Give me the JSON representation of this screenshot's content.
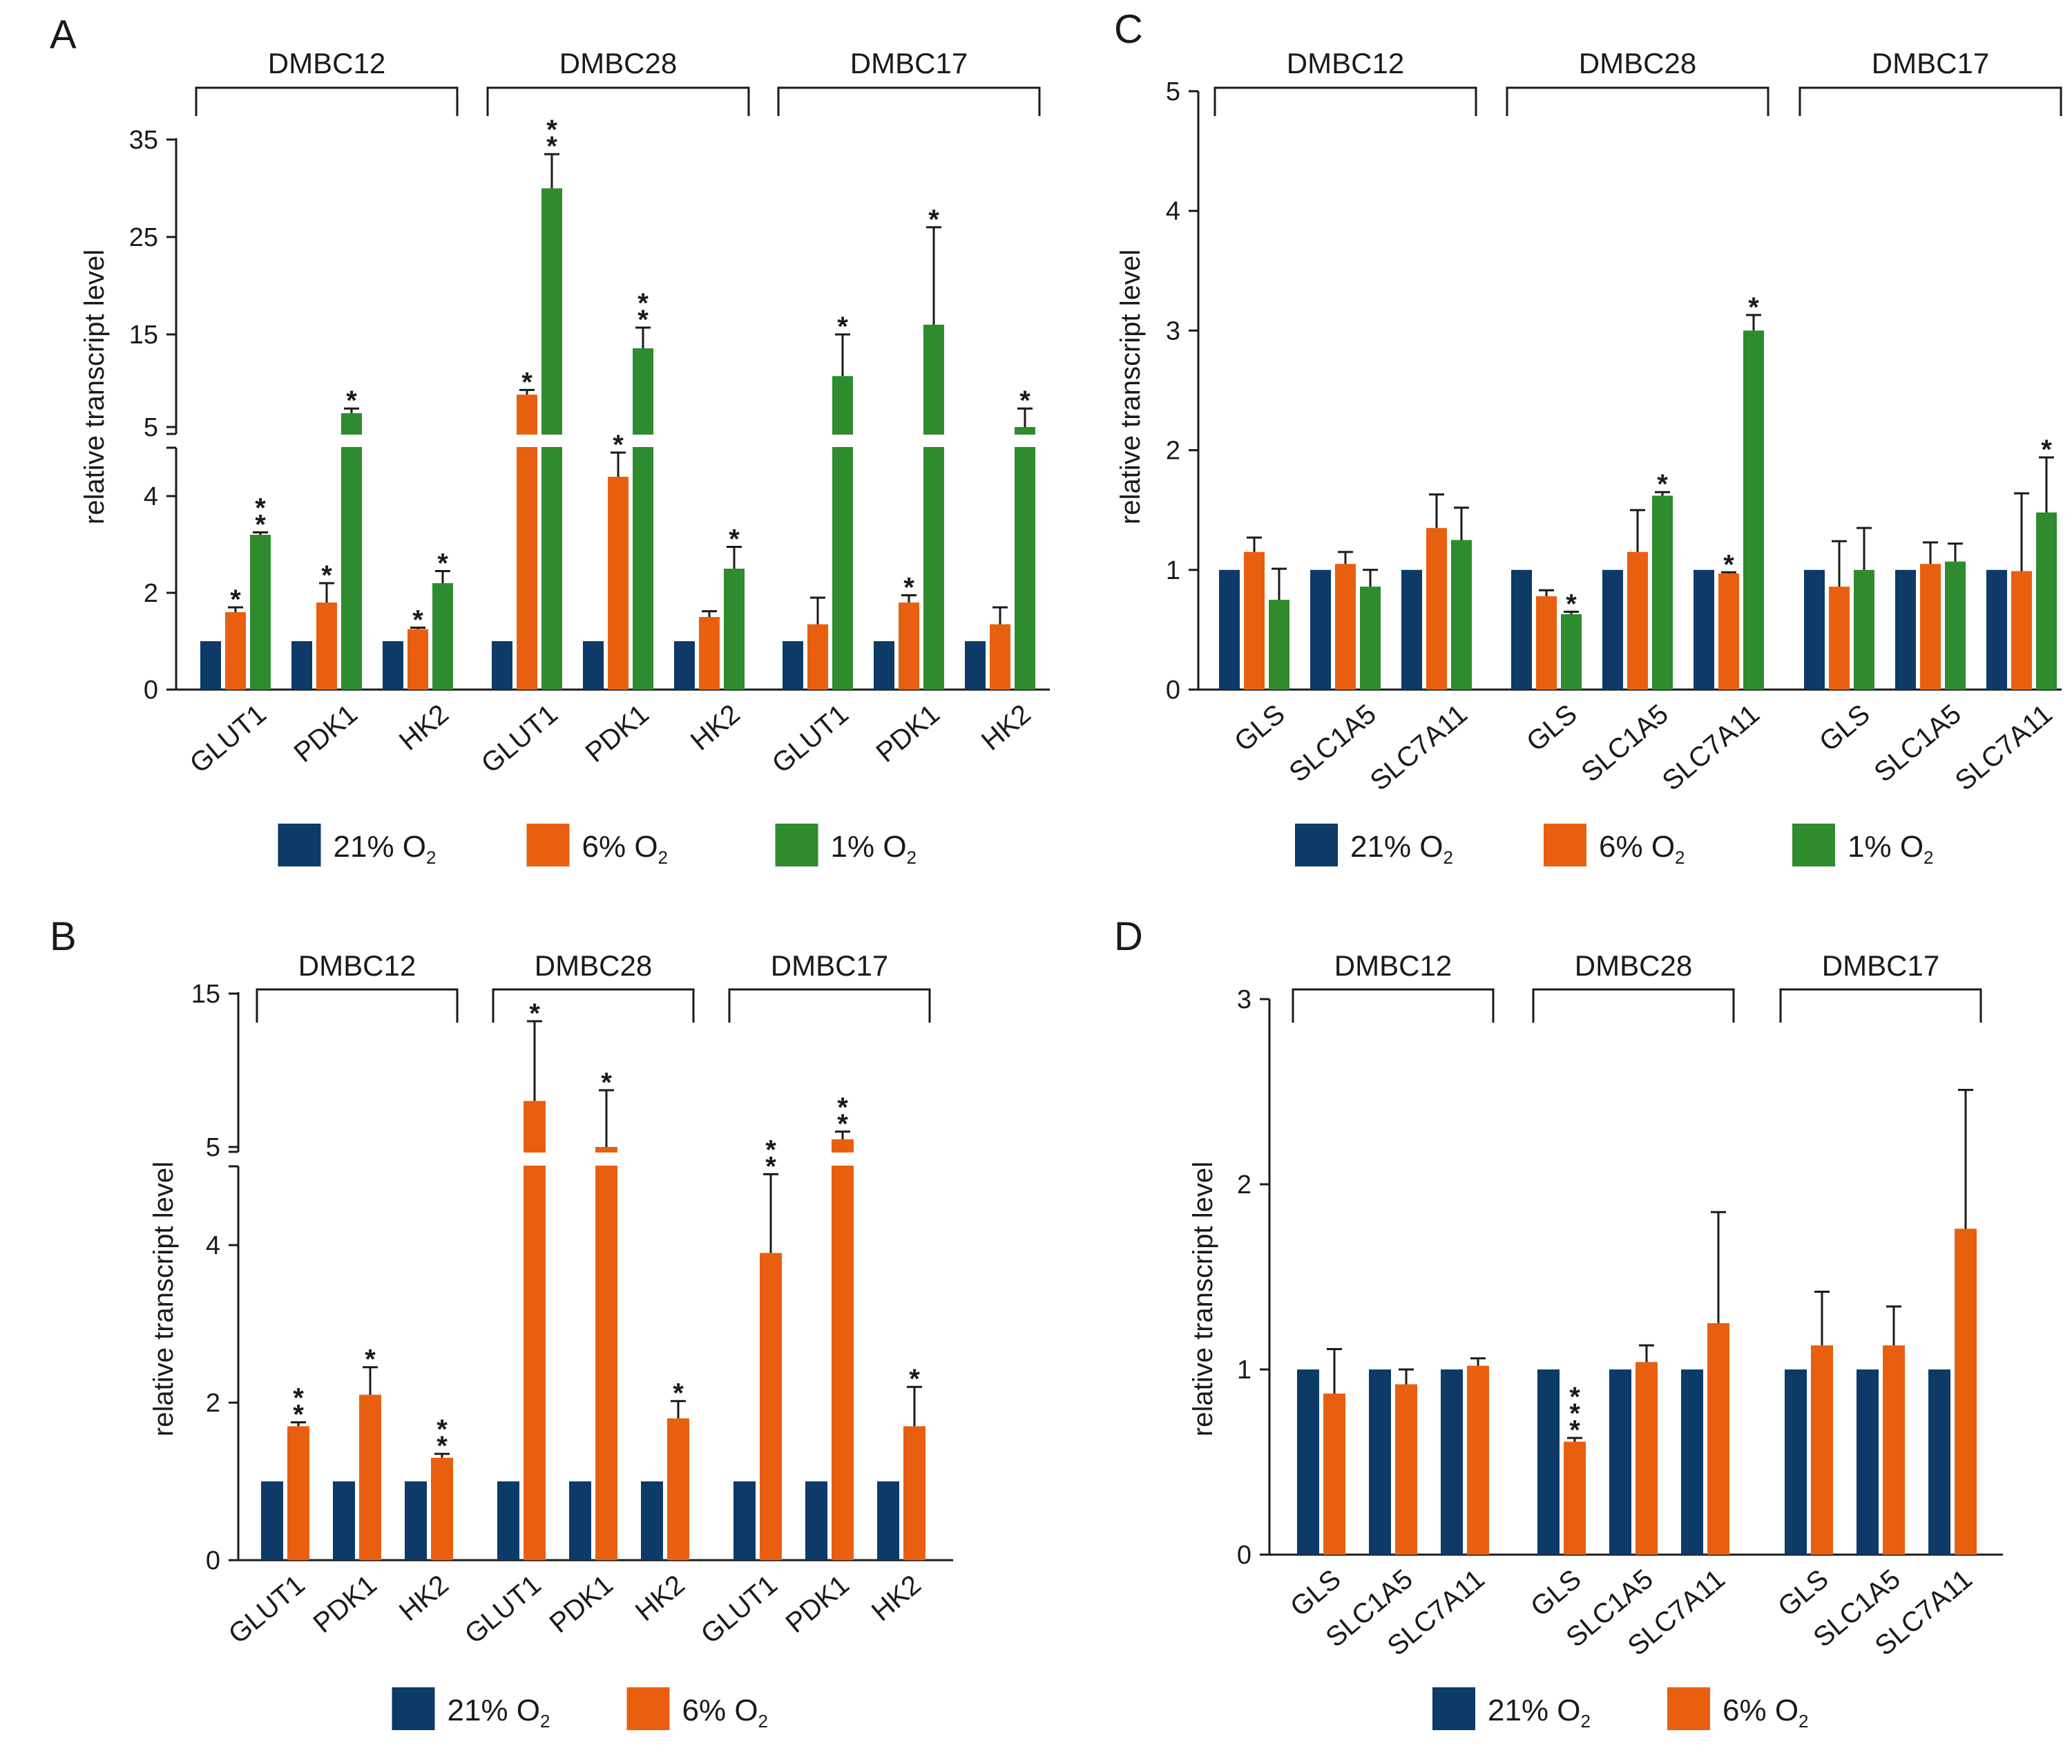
{
  "colors": {
    "c21": "#0d3a66",
    "c6": "#e8600f",
    "c1": "#2e8b2e"
  },
  "chart_data": [
    {
      "panel": "A",
      "type": "bar",
      "ylabel": "relative transcript level",
      "broken_axis": true,
      "lower_ticks": [
        "0",
        "2",
        "4"
      ],
      "upper_ticks": [
        "5",
        "15",
        "25",
        "35"
      ],
      "groups": [
        {
          "name": "DMBC12",
          "genes": [
            "GLUT1",
            "PDK1",
            "HK2"
          ]
        },
        {
          "name": "DMBC28",
          "genes": [
            "GLUT1",
            "PDK1",
            "HK2"
          ]
        },
        {
          "name": "DMBC17",
          "genes": [
            "GLUT1",
            "PDK1",
            "HK2"
          ]
        }
      ],
      "series": [
        {
          "name": "21% O2",
          "label": "21% O",
          "sub": "2",
          "color": "#0d3a66",
          "values": [
            1,
            1,
            1,
            1,
            1,
            1,
            1,
            1,
            1
          ],
          "errors": [
            0,
            0,
            0,
            0,
            0,
            0,
            0,
            0,
            0
          ],
          "stars": [
            "",
            "",
            "",
            "",
            "",
            "",
            "",
            "",
            ""
          ]
        },
        {
          "name": "6% O2",
          "label": "6% O",
          "sub": "2",
          "color": "#e8600f",
          "values": [
            1.6,
            1.8,
            1.25,
            8.5,
            4.4,
            1.5,
            1.35,
            1.8,
            1.35
          ],
          "errors": [
            0.1,
            0.4,
            0.03,
            0.5,
            0.5,
            0.12,
            0.55,
            0.15,
            0.35
          ],
          "stars": [
            "*",
            "*",
            "*",
            "*",
            "*",
            "",
            "",
            "*",
            ""
          ]
        },
        {
          "name": "1% O2",
          "label": "1% O",
          "sub": "2",
          "color": "#2e8b2e",
          "values": [
            3.2,
            6.5,
            2.2,
            30,
            13.5,
            2.5,
            10.5,
            16,
            5
          ],
          "errors": [
            0.05,
            0.5,
            0.25,
            3.5,
            2.2,
            0.45,
            4.5,
            10,
            2
          ],
          "stars": [
            "**",
            "*",
            "*",
            "**",
            "**",
            "*",
            "*",
            "*",
            "*"
          ]
        }
      ]
    },
    {
      "panel": "B",
      "type": "bar",
      "ylabel": "relative transcript level",
      "broken_axis": true,
      "lower_ticks": [
        "0",
        "2",
        "4"
      ],
      "upper_ticks": [
        "5",
        "15"
      ],
      "groups": [
        {
          "name": "DMBC12",
          "genes": [
            "GLUT1",
            "PDK1",
            "HK2"
          ]
        },
        {
          "name": "DMBC28",
          "genes": [
            "GLUT1",
            "PDK1",
            "HK2"
          ]
        },
        {
          "name": "DMBC17",
          "genes": [
            "GLUT1",
            "PDK1",
            "HK2"
          ]
        }
      ],
      "series": [
        {
          "name": "21% O2",
          "label": "21% O",
          "sub": "2",
          "color": "#0d3a66",
          "values": [
            1,
            1,
            1,
            1,
            1,
            1,
            1,
            1,
            1
          ],
          "errors": [
            0,
            0,
            0,
            0,
            0,
            0,
            0,
            0,
            0
          ],
          "stars": [
            "",
            "",
            "",
            "",
            "",
            "",
            "",
            "",
            ""
          ]
        },
        {
          "name": "6% O2",
          "label": "6% O",
          "sub": "2",
          "color": "#e8600f",
          "values": [
            1.7,
            2.1,
            1.3,
            8,
            5,
            1.8,
            3.9,
            5.5,
            1.7
          ],
          "errors": [
            0.05,
            0.35,
            0.05,
            5.2,
            3.7,
            0.22,
            1.0,
            0.5,
            0.5
          ],
          "stars": [
            "**",
            "*",
            "**",
            "*",
            "*",
            "*",
            "**",
            "**",
            "*"
          ]
        }
      ]
    },
    {
      "panel": "C",
      "type": "bar",
      "ylabel": "relative transcript level",
      "broken_axis": false,
      "ylim": [
        0,
        5
      ],
      "ticks": [
        "0",
        "1",
        "2",
        "3",
        "4",
        "5"
      ],
      "groups": [
        {
          "name": "DMBC12",
          "genes": [
            "GLS",
            "SLC1A5",
            "SLC7A11"
          ]
        },
        {
          "name": "DMBC28",
          "genes": [
            "GLS",
            "SLC1A5",
            "SLC7A11"
          ]
        },
        {
          "name": "DMBC17",
          "genes": [
            "GLS",
            "SLC1A5",
            "SLC7A11"
          ]
        }
      ],
      "series": [
        {
          "name": "21% O2",
          "label": "21% O",
          "sub": "2",
          "color": "#0d3a66",
          "values": [
            1,
            1,
            1,
            1,
            1,
            1,
            1,
            1,
            1
          ],
          "errors": [
            0,
            0,
            0,
            0,
            0,
            0,
            0,
            0,
            0
          ],
          "stars": [
            "",
            "",
            "",
            "",
            "",
            "",
            "",
            "",
            ""
          ]
        },
        {
          "name": "6% O2",
          "label": "6% O",
          "sub": "2",
          "color": "#e8600f",
          "values": [
            1.15,
            1.05,
            1.35,
            0.78,
            1.15,
            0.97,
            0.86,
            1.05,
            0.99
          ],
          "errors": [
            0.12,
            0.1,
            0.28,
            0.05,
            0.35,
            0.01,
            0.38,
            0.18,
            0.65
          ],
          "stars": [
            "",
            "",
            "",
            "",
            "",
            "*",
            "",
            "",
            ""
          ]
        },
        {
          "name": "1% O2",
          "label": "1% O",
          "sub": "2",
          "color": "#2e8b2e",
          "values": [
            0.75,
            0.86,
            1.25,
            0.63,
            1.62,
            3.0,
            1.0,
            1.07,
            1.48
          ],
          "errors": [
            0.26,
            0.14,
            0.27,
            0.02,
            0.03,
            0.13,
            0.35,
            0.15,
            0.46
          ],
          "stars": [
            "",
            "",
            "",
            "*",
            "*",
            "*",
            "",
            "",
            "*"
          ]
        }
      ]
    },
    {
      "panel": "D",
      "type": "bar",
      "ylabel": "relative transcript level",
      "broken_axis": false,
      "ylim": [
        0,
        3
      ],
      "ticks": [
        "0",
        "1",
        "2",
        "3"
      ],
      "groups": [
        {
          "name": "DMBC12",
          "genes": [
            "GLS",
            "SLC1A5",
            "SLC7A11"
          ]
        },
        {
          "name": "DMBC28",
          "genes": [
            "GLS",
            "SLC1A5",
            "SLC7A11"
          ]
        },
        {
          "name": "DMBC17",
          "genes": [
            "GLS",
            "SLC1A5",
            "SLC7A11"
          ]
        }
      ],
      "series": [
        {
          "name": "21% O2",
          "label": "21% O",
          "sub": "2",
          "color": "#0d3a66",
          "values": [
            1,
            1,
            1,
            1,
            1,
            1,
            1,
            1,
            1
          ],
          "errors": [
            0,
            0,
            0,
            0,
            0,
            0,
            0,
            0,
            0
          ],
          "stars": [
            "",
            "",
            "",
            "",
            "",
            "",
            "",
            "",
            ""
          ]
        },
        {
          "name": "6% O2",
          "label": "6% O",
          "sub": "2",
          "color": "#e8600f",
          "values": [
            0.87,
            0.92,
            1.02,
            0.61,
            1.04,
            1.25,
            1.13,
            1.13,
            1.76
          ],
          "errors": [
            0.24,
            0.08,
            0.04,
            0.02,
            0.09,
            0.6,
            0.29,
            0.21,
            0.75
          ],
          "stars": [
            "",
            "",
            "",
            "***",
            "",
            "",
            "",
            "",
            ""
          ]
        }
      ]
    }
  ]
}
